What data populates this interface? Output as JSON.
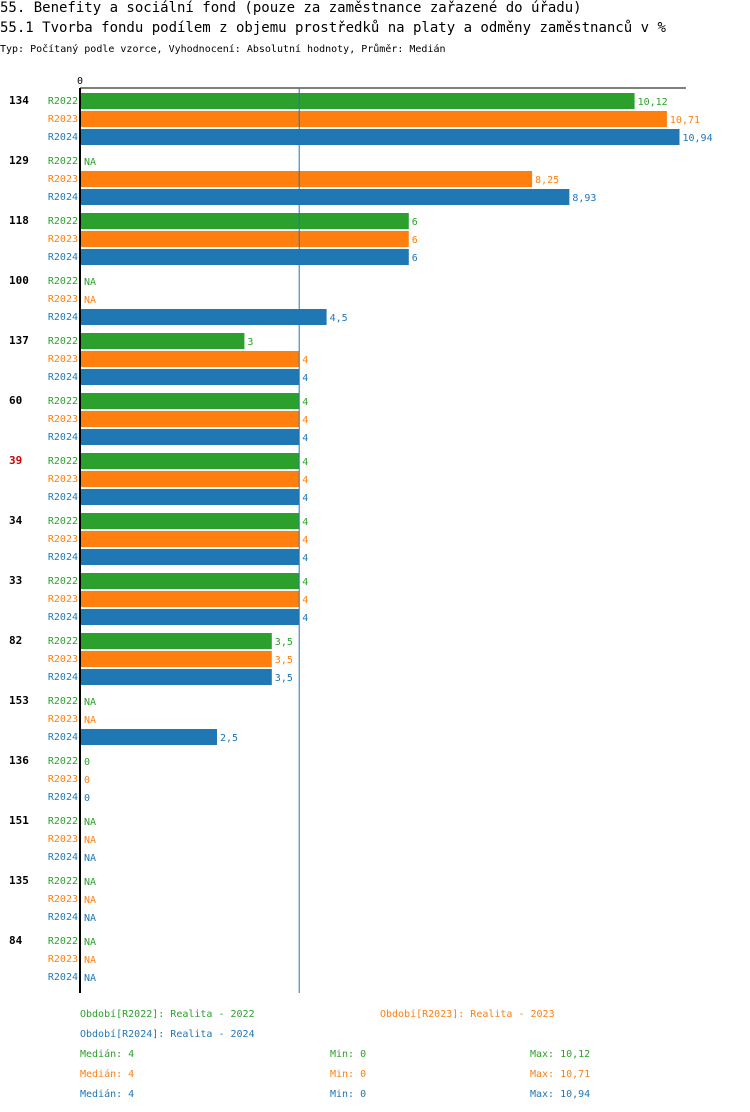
{
  "header": {
    "title": "55. Benefity a sociální fond (pouze za zaměstnance zařazené do úřadu)",
    "subtitle": "55.1 Tvorba fondu podílem z objemu prostředků na platy a odměny zaměstnanců v %",
    "type_line": "Typ: Počítaný podle vzorce, Vyhodnocení: Absolutní hodnoty, Průměr: Medián"
  },
  "colors": {
    "R2022": "#2ca02c",
    "R2023": "#ff7f0e",
    "R2024": "#1f77b4",
    "highlight": "#cc0000",
    "axis": "#000000",
    "median_line": "#1f77b4"
  },
  "chart_data": {
    "type": "bar",
    "orientation": "horizontal",
    "axis_zero_label": "0",
    "xlim": [
      0,
      11
    ],
    "median_line_value": 4,
    "series_names": [
      "R2022",
      "R2023",
      "R2024"
    ],
    "groups": [
      {
        "id": "134",
        "highlight": false,
        "values": [
          10.12,
          10.71,
          10.94
        ],
        "labels": [
          "10,12",
          "10,71",
          "10,94"
        ]
      },
      {
        "id": "129",
        "highlight": false,
        "values": [
          null,
          8.25,
          8.93
        ],
        "labels": [
          "NA",
          "8,25",
          "8,93"
        ]
      },
      {
        "id": "118",
        "highlight": false,
        "values": [
          6,
          6,
          6
        ],
        "labels": [
          "6",
          "6",
          "6"
        ]
      },
      {
        "id": "100",
        "highlight": false,
        "values": [
          null,
          null,
          4.5
        ],
        "labels": [
          "NA",
          "NA",
          "4,5"
        ]
      },
      {
        "id": "137",
        "highlight": false,
        "values": [
          3,
          4,
          4
        ],
        "labels": [
          "3",
          "4",
          "4"
        ]
      },
      {
        "id": "60",
        "highlight": false,
        "values": [
          4,
          4,
          4
        ],
        "labels": [
          "4",
          "4",
          "4"
        ]
      },
      {
        "id": "39",
        "highlight": true,
        "values": [
          4,
          4,
          4
        ],
        "labels": [
          "4",
          "4",
          "4"
        ]
      },
      {
        "id": "34",
        "highlight": false,
        "values": [
          4,
          4,
          4
        ],
        "labels": [
          "4",
          "4",
          "4"
        ]
      },
      {
        "id": "33",
        "highlight": false,
        "values": [
          4,
          4,
          4
        ],
        "labels": [
          "4",
          "4",
          "4"
        ]
      },
      {
        "id": "82",
        "highlight": false,
        "values": [
          3.5,
          3.5,
          3.5
        ],
        "labels": [
          "3,5",
          "3,5",
          "3,5"
        ]
      },
      {
        "id": "153",
        "highlight": false,
        "values": [
          null,
          null,
          2.5
        ],
        "labels": [
          "NA",
          "NA",
          "2,5"
        ]
      },
      {
        "id": "136",
        "highlight": false,
        "values": [
          0,
          0,
          0
        ],
        "labels": [
          "0",
          "0",
          "0"
        ]
      },
      {
        "id": "151",
        "highlight": false,
        "values": [
          null,
          null,
          null
        ],
        "labels": [
          "NA",
          "NA",
          "NA"
        ]
      },
      {
        "id": "135",
        "highlight": false,
        "values": [
          null,
          null,
          null
        ],
        "labels": [
          "NA",
          "NA",
          "NA"
        ]
      },
      {
        "id": "84",
        "highlight": false,
        "values": [
          null,
          null,
          null
        ],
        "labels": [
          "NA",
          "NA",
          "NA"
        ]
      }
    ],
    "legend": [
      {
        "series": "R2022",
        "text": "Období[R2022]: Realita - 2022"
      },
      {
        "series": "R2023",
        "text": "Období[R2023]: Realita - 2023"
      },
      {
        "series": "R2024",
        "text": "Období[R2024]: Realita - 2024"
      }
    ],
    "stats": [
      {
        "series": "R2022",
        "median": "Medián: 4",
        "min": "Min: 0",
        "max": "Max: 10,12"
      },
      {
        "series": "R2023",
        "median": "Medián: 4",
        "min": "Min: 0",
        "max": "Max: 10,71"
      },
      {
        "series": "R2024",
        "median": "Medián: 4",
        "min": "Min: 0",
        "max": "Max: 10,94"
      }
    ]
  }
}
